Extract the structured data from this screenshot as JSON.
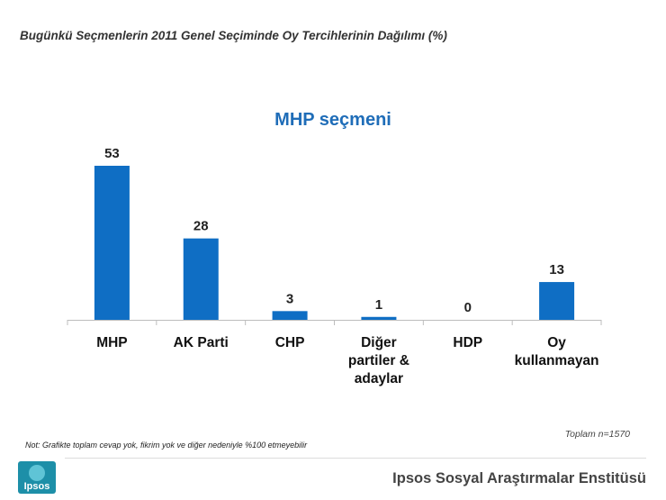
{
  "page": {
    "title": "Bugünkü Seçmenlerin 2011 Genel Seçiminde Oy Tercihlerinin Dağılımı (%)",
    "total_n": "Toplam n=1570",
    "note": "Not: Grafikte toplam cevap yok, fikrim yok ve diğer nedeniyle %100 etmeyebilir",
    "institute": "Ipsos Sosyal Araştırmalar Enstitüsü",
    "logo_text": "Ipsos"
  },
  "colors": {
    "bar": "#0f6ec4",
    "title": "#1f6db8",
    "axis": "#bdbdbd"
  },
  "chart_data": {
    "type": "bar",
    "title": "MHP seçmeni",
    "xlabel": "",
    "ylabel": "",
    "categories": [
      [
        "MHP"
      ],
      [
        "AK Parti"
      ],
      [
        "CHP"
      ],
      [
        "Diğer",
        "partiler &",
        "adaylar"
      ],
      [
        "HDP"
      ],
      [
        "Oy",
        "kullanmayan"
      ]
    ],
    "values": [
      53,
      28,
      3,
      1,
      0,
      13
    ],
    "ylim": [
      0,
      53
    ],
    "grid": false,
    "legend": "none"
  }
}
